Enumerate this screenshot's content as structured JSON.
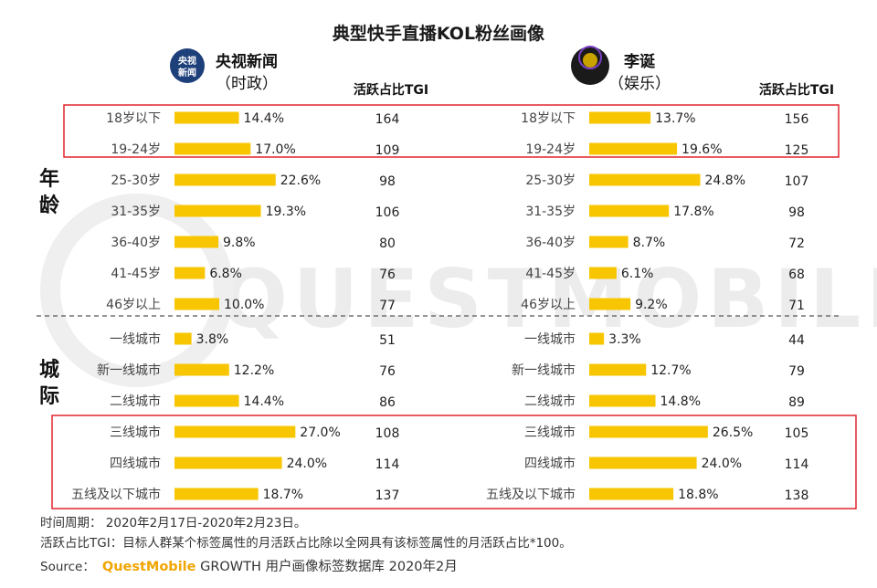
{
  "chart_data": {
    "type": "bar",
    "title": "典型快手直播KOL粉丝画像",
    "tgi_header": "活跃占比TGI",
    "groups": [
      {
        "label": "年龄",
        "categories": [
          "18岁以下",
          "19-24岁",
          "25-30岁",
          "31-35岁",
          "36-40岁",
          "41-45岁",
          "46岁以上"
        ]
      },
      {
        "label": "城际",
        "categories": [
          "一线城市",
          "新一线城市",
          "二线城市",
          "三线城市",
          "四线城市",
          "五线及以下城市"
        ]
      }
    ],
    "series": [
      {
        "name": "央视新闻",
        "name_sub": "（时政）",
        "avatar_text": [
          "央视",
          "新闻"
        ],
        "values": [
          "14.4%",
          "17.0%",
          "22.6%",
          "19.3%",
          "9.8%",
          "6.8%",
          "10.0%",
          "3.8%",
          "12.2%",
          "14.4%",
          "27.0%",
          "24.0%",
          "18.7%"
        ],
        "tgi": [
          164,
          109,
          98,
          106,
          80,
          76,
          77,
          51,
          76,
          86,
          108,
          114,
          137
        ]
      },
      {
        "name": "李诞",
        "name_sub": "（娱乐）",
        "values": [
          "13.7%",
          "19.6%",
          "24.8%",
          "17.8%",
          "8.7%",
          "6.1%",
          "9.2%",
          "3.3%",
          "12.7%",
          "14.8%",
          "26.5%",
          "24.0%",
          "18.8%"
        ],
        "tgi": [
          156,
          125,
          107,
          98,
          72,
          68,
          71,
          44,
          79,
          89,
          105,
          114,
          138
        ]
      }
    ],
    "bar_color": "#f7c600",
    "highlight_color": "#e0262d"
  },
  "footer": {
    "period": "时间周期：  2020年2月17日-2020年2月23日。",
    "tgi_note": "活跃占比TGI：目标人群某个标签属性的月活跃占比除以全网具有该标签属性的月活跃占比*100。",
    "source_prefix": "Source：",
    "source_brand": "QuestMobile",
    "source_rest": " GROWTH 用户画像标签数据库 2020年2月"
  },
  "watermark": "QUESTMOBILE"
}
